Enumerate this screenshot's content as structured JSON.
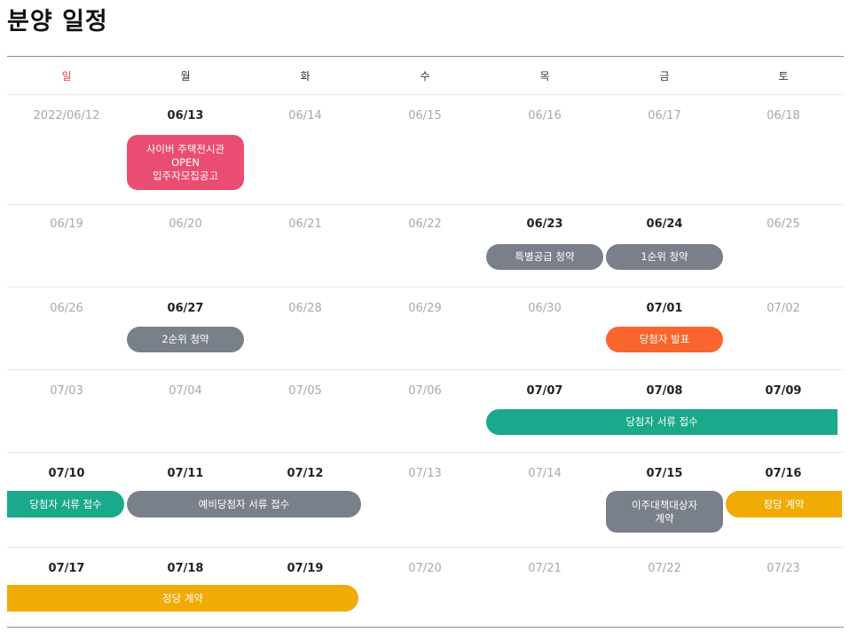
{
  "page": {
    "title": "분양 일정"
  },
  "weekdays": [
    "일",
    "월",
    "화",
    "수",
    "목",
    "금",
    "토"
  ],
  "weeks": [
    {
      "dates": [
        "2022/06/12",
        "06/13",
        "06/14",
        "06/15",
        "06/16",
        "06/17",
        "06/18"
      ],
      "active": [
        false,
        true,
        false,
        false,
        false,
        false,
        false
      ]
    },
    {
      "dates": [
        "06/19",
        "06/20",
        "06/21",
        "06/22",
        "06/23",
        "06/24",
        "06/25"
      ],
      "active": [
        false,
        false,
        false,
        false,
        true,
        true,
        false
      ]
    },
    {
      "dates": [
        "06/26",
        "06/27",
        "06/28",
        "06/29",
        "06/30",
        "07/01",
        "07/02"
      ],
      "active": [
        false,
        true,
        false,
        false,
        false,
        true,
        false
      ]
    },
    {
      "dates": [
        "07/03",
        "07/04",
        "07/05",
        "07/06",
        "07/07",
        "07/08",
        "07/09"
      ],
      "active": [
        false,
        false,
        false,
        false,
        true,
        true,
        true
      ]
    },
    {
      "dates": [
        "07/10",
        "07/11",
        "07/12",
        "07/13",
        "07/14",
        "07/15",
        "07/16"
      ],
      "active": [
        true,
        true,
        true,
        false,
        false,
        true,
        true
      ]
    },
    {
      "dates": [
        "07/17",
        "07/18",
        "07/19",
        "07/20",
        "07/21",
        "07/22",
        "07/23"
      ],
      "active": [
        true,
        true,
        true,
        false,
        false,
        false,
        false
      ]
    }
  ],
  "events": {
    "cyber_open": [
      "사이버 주택전시관",
      "OPEN",
      "입주자모집공고"
    ],
    "special_supply": "특별공급 청약",
    "first_rank": "1순위 청약",
    "second_rank": "2순위 청약",
    "winner_announce": "당첨자 발표",
    "winner_docs": "당첨자 서류 접수",
    "winner_docs_cont": "당첨자 서류 접수",
    "reserve_docs": "예비당첨자 서류 접수",
    "relocation_contract": [
      "이주대책대상자",
      "계약"
    ],
    "regular_contract": "정당 계약",
    "regular_contract_cont": "정당 계약"
  },
  "colors": {
    "pink": "#ea4d72",
    "gray": "#7a8089",
    "orange": "#f9652c",
    "green": "#1aa98a",
    "yellow": "#f1ab06",
    "sunday": "#e8472e"
  }
}
